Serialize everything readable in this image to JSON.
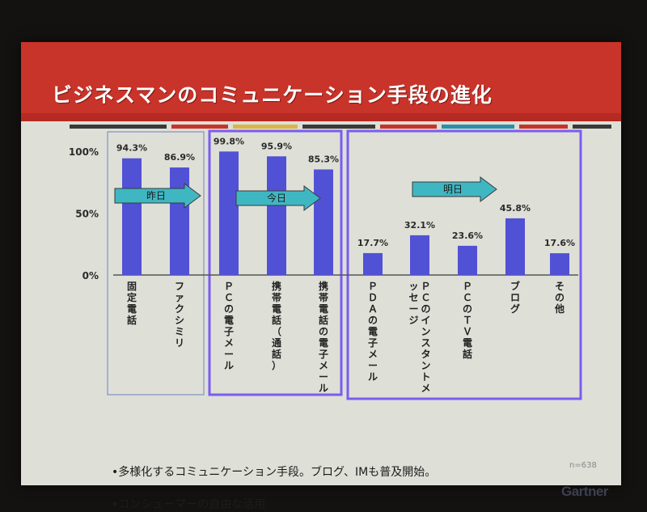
{
  "slide": {
    "title": "ビジネスマンのコミュニケーション手段の進化",
    "bullets": [
      "•多様化するコミュニケーション手段。ブログ、IMも普及開始。",
      "•コンシューマーの自由な活用"
    ],
    "footnote": "n=638",
    "logo": "Gartner",
    "colors": {
      "banner": "#c8332a",
      "bar": "#5151d6",
      "arrow": "#3fb7c2",
      "frame": "#7a5cf0"
    }
  },
  "chart_data": {
    "type": "bar",
    "categories": [
      "固定電話",
      "ファクシミリ",
      "ＰＣの電子メール",
      "携帯電話（通話）",
      "携帯電話の電子メール",
      "ＰＤＡの電子メール",
      "ＰＣのインスタントメッセージ",
      "ＰＣのＴＶ電話",
      "ブログ",
      "その他"
    ],
    "values": [
      94.3,
      86.9,
      99.8,
      95.9,
      85.3,
      17.7,
      32.1,
      23.6,
      45.8,
      17.6
    ],
    "value_labels": [
      "94.3%",
      "86.9%",
      "99.8%",
      "95.9%",
      "85.3%",
      "17.7%",
      "32.1%",
      "23.6%",
      "45.8%",
      "17.6%"
    ],
    "yticks": [
      "100%",
      "50%",
      "0%"
    ],
    "ylim": [
      0,
      100
    ],
    "groups": [
      {
        "label": "昨日",
        "categories": [
          "固定電話",
          "ファクシミリ"
        ]
      },
      {
        "label": "今日",
        "categories": [
          "ＰＣの電子メール",
          "携帯電話（通話）",
          "携帯電話の電子メール"
        ]
      },
      {
        "label": "明日",
        "categories": [
          "ＰＤＡの電子メール",
          "ＰＣのインスタントメッセージ",
          "ＰＣのＴＶ電話",
          "ブログ",
          "その他"
        ]
      }
    ]
  }
}
